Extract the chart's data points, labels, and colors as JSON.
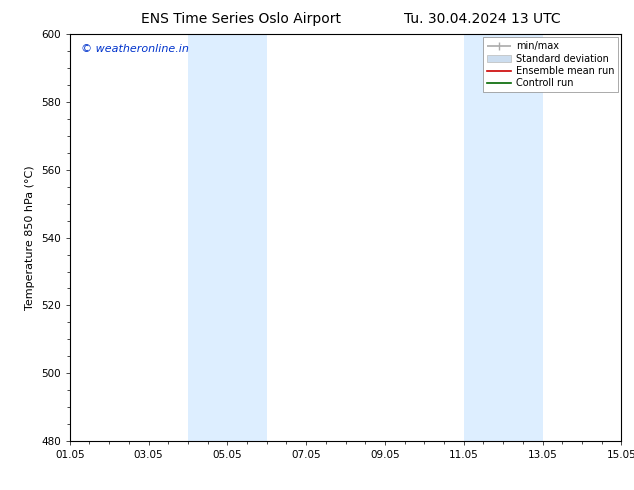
{
  "title_left": "ENS Time Series Oslo Airport",
  "title_right": "Tu. 30.04.2024 13 UTC",
  "ylabel": "Temperature 850 hPa (°C)",
  "ylim": [
    480,
    600
  ],
  "yticks": [
    480,
    500,
    520,
    540,
    560,
    580,
    600
  ],
  "xtick_labels": [
    "01.05",
    "03.05",
    "05.05",
    "07.05",
    "09.05",
    "11.05",
    "13.05",
    "15.05"
  ],
  "xtick_positions": [
    0,
    2,
    4,
    6,
    8,
    10,
    12,
    14
  ],
  "xlim": [
    0,
    14
  ],
  "shaded_bands": [
    {
      "x_start": 3.0,
      "x_end": 5.0,
      "color": "#ddeeff"
    },
    {
      "x_start": 10.0,
      "x_end": 12.0,
      "color": "#ddeeff"
    }
  ],
  "watermark_text": "© weatheronline.in",
  "watermark_color": "#0033cc",
  "watermark_fontsize": 8,
  "legend_entries": [
    {
      "label": "min/max",
      "color": "#aaaaaa",
      "lw": 1.2
    },
    {
      "label": "Standard deviation",
      "color": "#ccddef",
      "lw": 8
    },
    {
      "label": "Ensemble mean run",
      "color": "#cc0000",
      "lw": 1.2
    },
    {
      "label": "Controll run",
      "color": "#006600",
      "lw": 1.2
    }
  ],
  "background_color": "#ffffff",
  "title_fontsize": 10,
  "axis_fontsize": 7.5,
  "ylabel_fontsize": 8
}
